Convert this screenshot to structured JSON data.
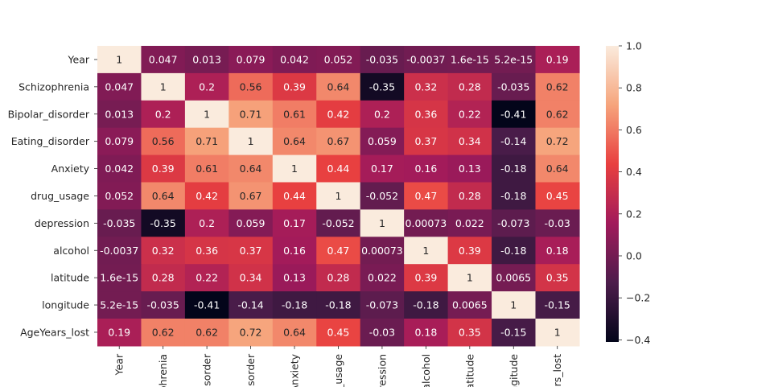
{
  "chart_data": {
    "type": "heatmap",
    "title": "",
    "rows": [
      "Year",
      "Schizophrenia",
      "Bipolar_disorder",
      "Eating_disorder",
      "Anxiety",
      "drug_usage",
      "depression",
      "alcohol",
      "latitude",
      "longitude",
      "AgeYears_lost"
    ],
    "columns": [
      "Year",
      "phrenia",
      "lisorder",
      "lisorder",
      "Anxiety",
      "_usage",
      "pression",
      "alcohol",
      "latitude",
      "ngitude",
      "ars_lost"
    ],
    "values": [
      [
        1,
        0.047,
        0.013,
        0.079,
        0.042,
        0.052,
        -0.035,
        -0.0037,
        1.6e-15,
        5.2e-15,
        0.19
      ],
      [
        0.047,
        1,
        0.2,
        0.56,
        0.39,
        0.64,
        -0.35,
        0.32,
        0.28,
        -0.035,
        0.62
      ],
      [
        0.013,
        0.2,
        1,
        0.71,
        0.61,
        0.42,
        0.2,
        0.36,
        0.22,
        -0.41,
        0.62
      ],
      [
        0.079,
        0.56,
        0.71,
        1,
        0.64,
        0.67,
        0.059,
        0.37,
        0.34,
        -0.14,
        0.72
      ],
      [
        0.042,
        0.39,
        0.61,
        0.64,
        1,
        0.44,
        0.17,
        0.16,
        0.13,
        -0.18,
        0.64
      ],
      [
        0.052,
        0.64,
        0.42,
        0.67,
        0.44,
        1,
        -0.052,
        0.47,
        0.28,
        -0.18,
        0.45
      ],
      [
        -0.035,
        -0.35,
        0.2,
        0.059,
        0.17,
        -0.052,
        1,
        0.00073,
        0.022,
        -0.073,
        -0.03
      ],
      [
        -0.0037,
        0.32,
        0.36,
        0.37,
        0.16,
        0.47,
        0.00073,
        1,
        0.39,
        -0.18,
        0.18
      ],
      [
        1.6e-15,
        0.28,
        0.22,
        0.34,
        0.13,
        0.28,
        0.022,
        0.39,
        1,
        0.0065,
        0.35
      ],
      [
        5.2e-15,
        -0.035,
        -0.41,
        -0.14,
        -0.18,
        -0.18,
        -0.073,
        -0.18,
        0.0065,
        1,
        -0.15
      ],
      [
        0.19,
        0.62,
        0.62,
        0.72,
        0.64,
        0.45,
        -0.03,
        0.18,
        0.35,
        -0.15,
        1
      ]
    ],
    "labels": [
      [
        "1",
        "0.047",
        "0.013",
        "0.079",
        "0.042",
        "0.052",
        "-0.035",
        "-0.0037",
        "1.6e-15",
        "5.2e-15",
        "0.19"
      ],
      [
        "0.047",
        "1",
        "0.2",
        "0.56",
        "0.39",
        "0.64",
        "-0.35",
        "0.32",
        "0.28",
        "-0.035",
        "0.62"
      ],
      [
        "0.013",
        "0.2",
        "1",
        "0.71",
        "0.61",
        "0.42",
        "0.2",
        "0.36",
        "0.22",
        "-0.41",
        "0.62"
      ],
      [
        "0.079",
        "0.56",
        "0.71",
        "1",
        "0.64",
        "0.67",
        "0.059",
        "0.37",
        "0.34",
        "-0.14",
        "0.72"
      ],
      [
        "0.042",
        "0.39",
        "0.61",
        "0.64",
        "1",
        "0.44",
        "0.17",
        "0.16",
        "0.13",
        "-0.18",
        "0.64"
      ],
      [
        "0.052",
        "0.64",
        "0.42",
        "0.67",
        "0.44",
        "1",
        "-0.052",
        "0.47",
        "0.28",
        "-0.18",
        "0.45"
      ],
      [
        "-0.035",
        "-0.35",
        "0.2",
        "0.059",
        "0.17",
        "-0.052",
        "1",
        "0.00073",
        "0.022",
        "-0.073",
        "-0.03"
      ],
      [
        "-0.0037",
        "0.32",
        "0.36",
        "0.37",
        "0.16",
        "0.47",
        "0.00073",
        "1",
        "0.39",
        "-0.18",
        "0.18"
      ],
      [
        "1.6e-15",
        "0.28",
        "0.22",
        "0.34",
        "0.13",
        "0.28",
        "0.022",
        "0.39",
        "1",
        "0.0065",
        "0.35"
      ],
      [
        "5.2e-15",
        "-0.035",
        "-0.41",
        "-0.14",
        "-0.18",
        "-0.18",
        "-0.073",
        "-0.18",
        "0.0065",
        "1",
        "-0.15"
      ],
      [
        "0.19",
        "0.62",
        "0.62",
        "0.72",
        "0.64",
        "0.45",
        "-0.03",
        "0.18",
        "0.35",
        "-0.15",
        "1"
      ]
    ],
    "colorbar": {
      "vmin": -0.41,
      "vmax": 1,
      "ticks": [
        1.0,
        0.8,
        0.6,
        0.4,
        0.2,
        0.0,
        -0.2,
        -0.4
      ],
      "tick_labels": [
        "1.0",
        "0.8",
        "0.6",
        "0.4",
        "0.2",
        "0.0",
        "−0.2",
        "−0.4"
      ],
      "colormap": "rocket",
      "colormap_stops": [
        "#03051a",
        "#4c1d4b",
        "#a11a5b",
        "#e83f3f",
        "#f6a47c",
        "#faebdd"
      ]
    },
    "grid": false,
    "legend": "colorbar-right"
  }
}
